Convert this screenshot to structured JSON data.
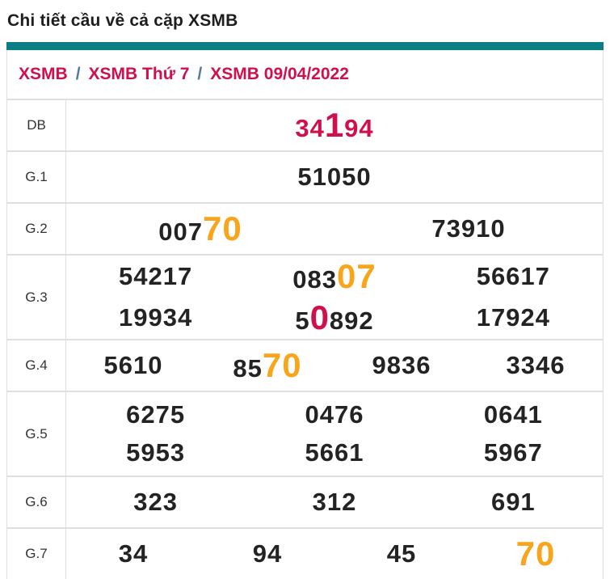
{
  "page": {
    "title": "Chi tiết cầu về cả cặp XSMB"
  },
  "breadcrumb": {
    "items": [
      "XSMB",
      "XSMB Thứ 7",
      "XSMB 09/04/2022"
    ],
    "separator": "/"
  },
  "colors": {
    "accent_teal": "#0b7d84",
    "crimson": "#d0104c",
    "orange": "#f9a51b",
    "text_dark": "#232323",
    "label_gray": "#333333",
    "border": "#dfdfdf",
    "breadcrumb_sep": "#527a99",
    "title": "#1e1e1e"
  },
  "table": {
    "rows": [
      {
        "label": "DB",
        "lines": [
          [
            {
              "segments": [
                {
                  "t": "34",
                  "color": "crimson"
                },
                {
                  "t": "1",
                  "color": "crimson",
                  "big": true
                },
                {
                  "t": "94",
                  "color": "crimson"
                }
              ]
            }
          ]
        ]
      },
      {
        "label": "G.1",
        "lines": [
          [
            {
              "segments": [
                {
                  "t": "51050",
                  "color": "dark"
                }
              ]
            }
          ]
        ]
      },
      {
        "label": "G.2",
        "lines": [
          [
            {
              "segments": [
                {
                  "t": "007",
                  "color": "dark"
                },
                {
                  "t": "70",
                  "color": "orange",
                  "big": true
                }
              ]
            },
            {
              "segments": [
                {
                  "t": "73910",
                  "color": "dark"
                }
              ]
            }
          ]
        ]
      },
      {
        "label": "G.3",
        "lines": [
          [
            {
              "segments": [
                {
                  "t": "54217",
                  "color": "dark"
                }
              ]
            },
            {
              "segments": [
                {
                  "t": "083",
                  "color": "dark"
                },
                {
                  "t": "07",
                  "color": "orange",
                  "big": true
                }
              ]
            },
            {
              "segments": [
                {
                  "t": "56617",
                  "color": "dark"
                }
              ]
            }
          ],
          [
            {
              "segments": [
                {
                  "t": "19934",
                  "color": "dark"
                }
              ]
            },
            {
              "segments": [
                {
                  "t": "5",
                  "color": "dark"
                },
                {
                  "t": "0",
                  "color": "crimson",
                  "big": true
                },
                {
                  "t": "892",
                  "color": "dark"
                }
              ]
            },
            {
              "segments": [
                {
                  "t": "17924",
                  "color": "dark"
                }
              ]
            }
          ]
        ]
      },
      {
        "label": "G.4",
        "lines": [
          [
            {
              "segments": [
                {
                  "t": "5610",
                  "color": "dark"
                }
              ]
            },
            {
              "segments": [
                {
                  "t": "85",
                  "color": "dark"
                },
                {
                  "t": "70",
                  "color": "orange",
                  "big": true
                }
              ]
            },
            {
              "segments": [
                {
                  "t": "9836",
                  "color": "dark"
                }
              ]
            },
            {
              "segments": [
                {
                  "t": "3346",
                  "color": "dark"
                }
              ]
            }
          ]
        ]
      },
      {
        "label": "G.5",
        "lines": [
          [
            {
              "segments": [
                {
                  "t": "6275",
                  "color": "dark"
                }
              ]
            },
            {
              "segments": [
                {
                  "t": "0476",
                  "color": "dark"
                }
              ]
            },
            {
              "segments": [
                {
                  "t": "0641",
                  "color": "dark"
                }
              ]
            }
          ],
          [
            {
              "segments": [
                {
                  "t": "5953",
                  "color": "dark"
                }
              ]
            },
            {
              "segments": [
                {
                  "t": "5661",
                  "color": "dark"
                }
              ]
            },
            {
              "segments": [
                {
                  "t": "5967",
                  "color": "dark"
                }
              ]
            }
          ]
        ]
      },
      {
        "label": "G.6",
        "lines": [
          [
            {
              "segments": [
                {
                  "t": "323",
                  "color": "dark"
                }
              ]
            },
            {
              "segments": [
                {
                  "t": "312",
                  "color": "dark"
                }
              ]
            },
            {
              "segments": [
                {
                  "t": "691",
                  "color": "dark"
                }
              ]
            }
          ]
        ]
      },
      {
        "label": "G.7",
        "lines": [
          [
            {
              "segments": [
                {
                  "t": "34",
                  "color": "dark"
                }
              ]
            },
            {
              "segments": [
                {
                  "t": "94",
                  "color": "dark"
                }
              ]
            },
            {
              "segments": [
                {
                  "t": "45",
                  "color": "dark"
                }
              ]
            },
            {
              "segments": [
                {
                  "t": "70",
                  "color": "orange",
                  "big": true
                }
              ]
            }
          ]
        ]
      }
    ]
  }
}
